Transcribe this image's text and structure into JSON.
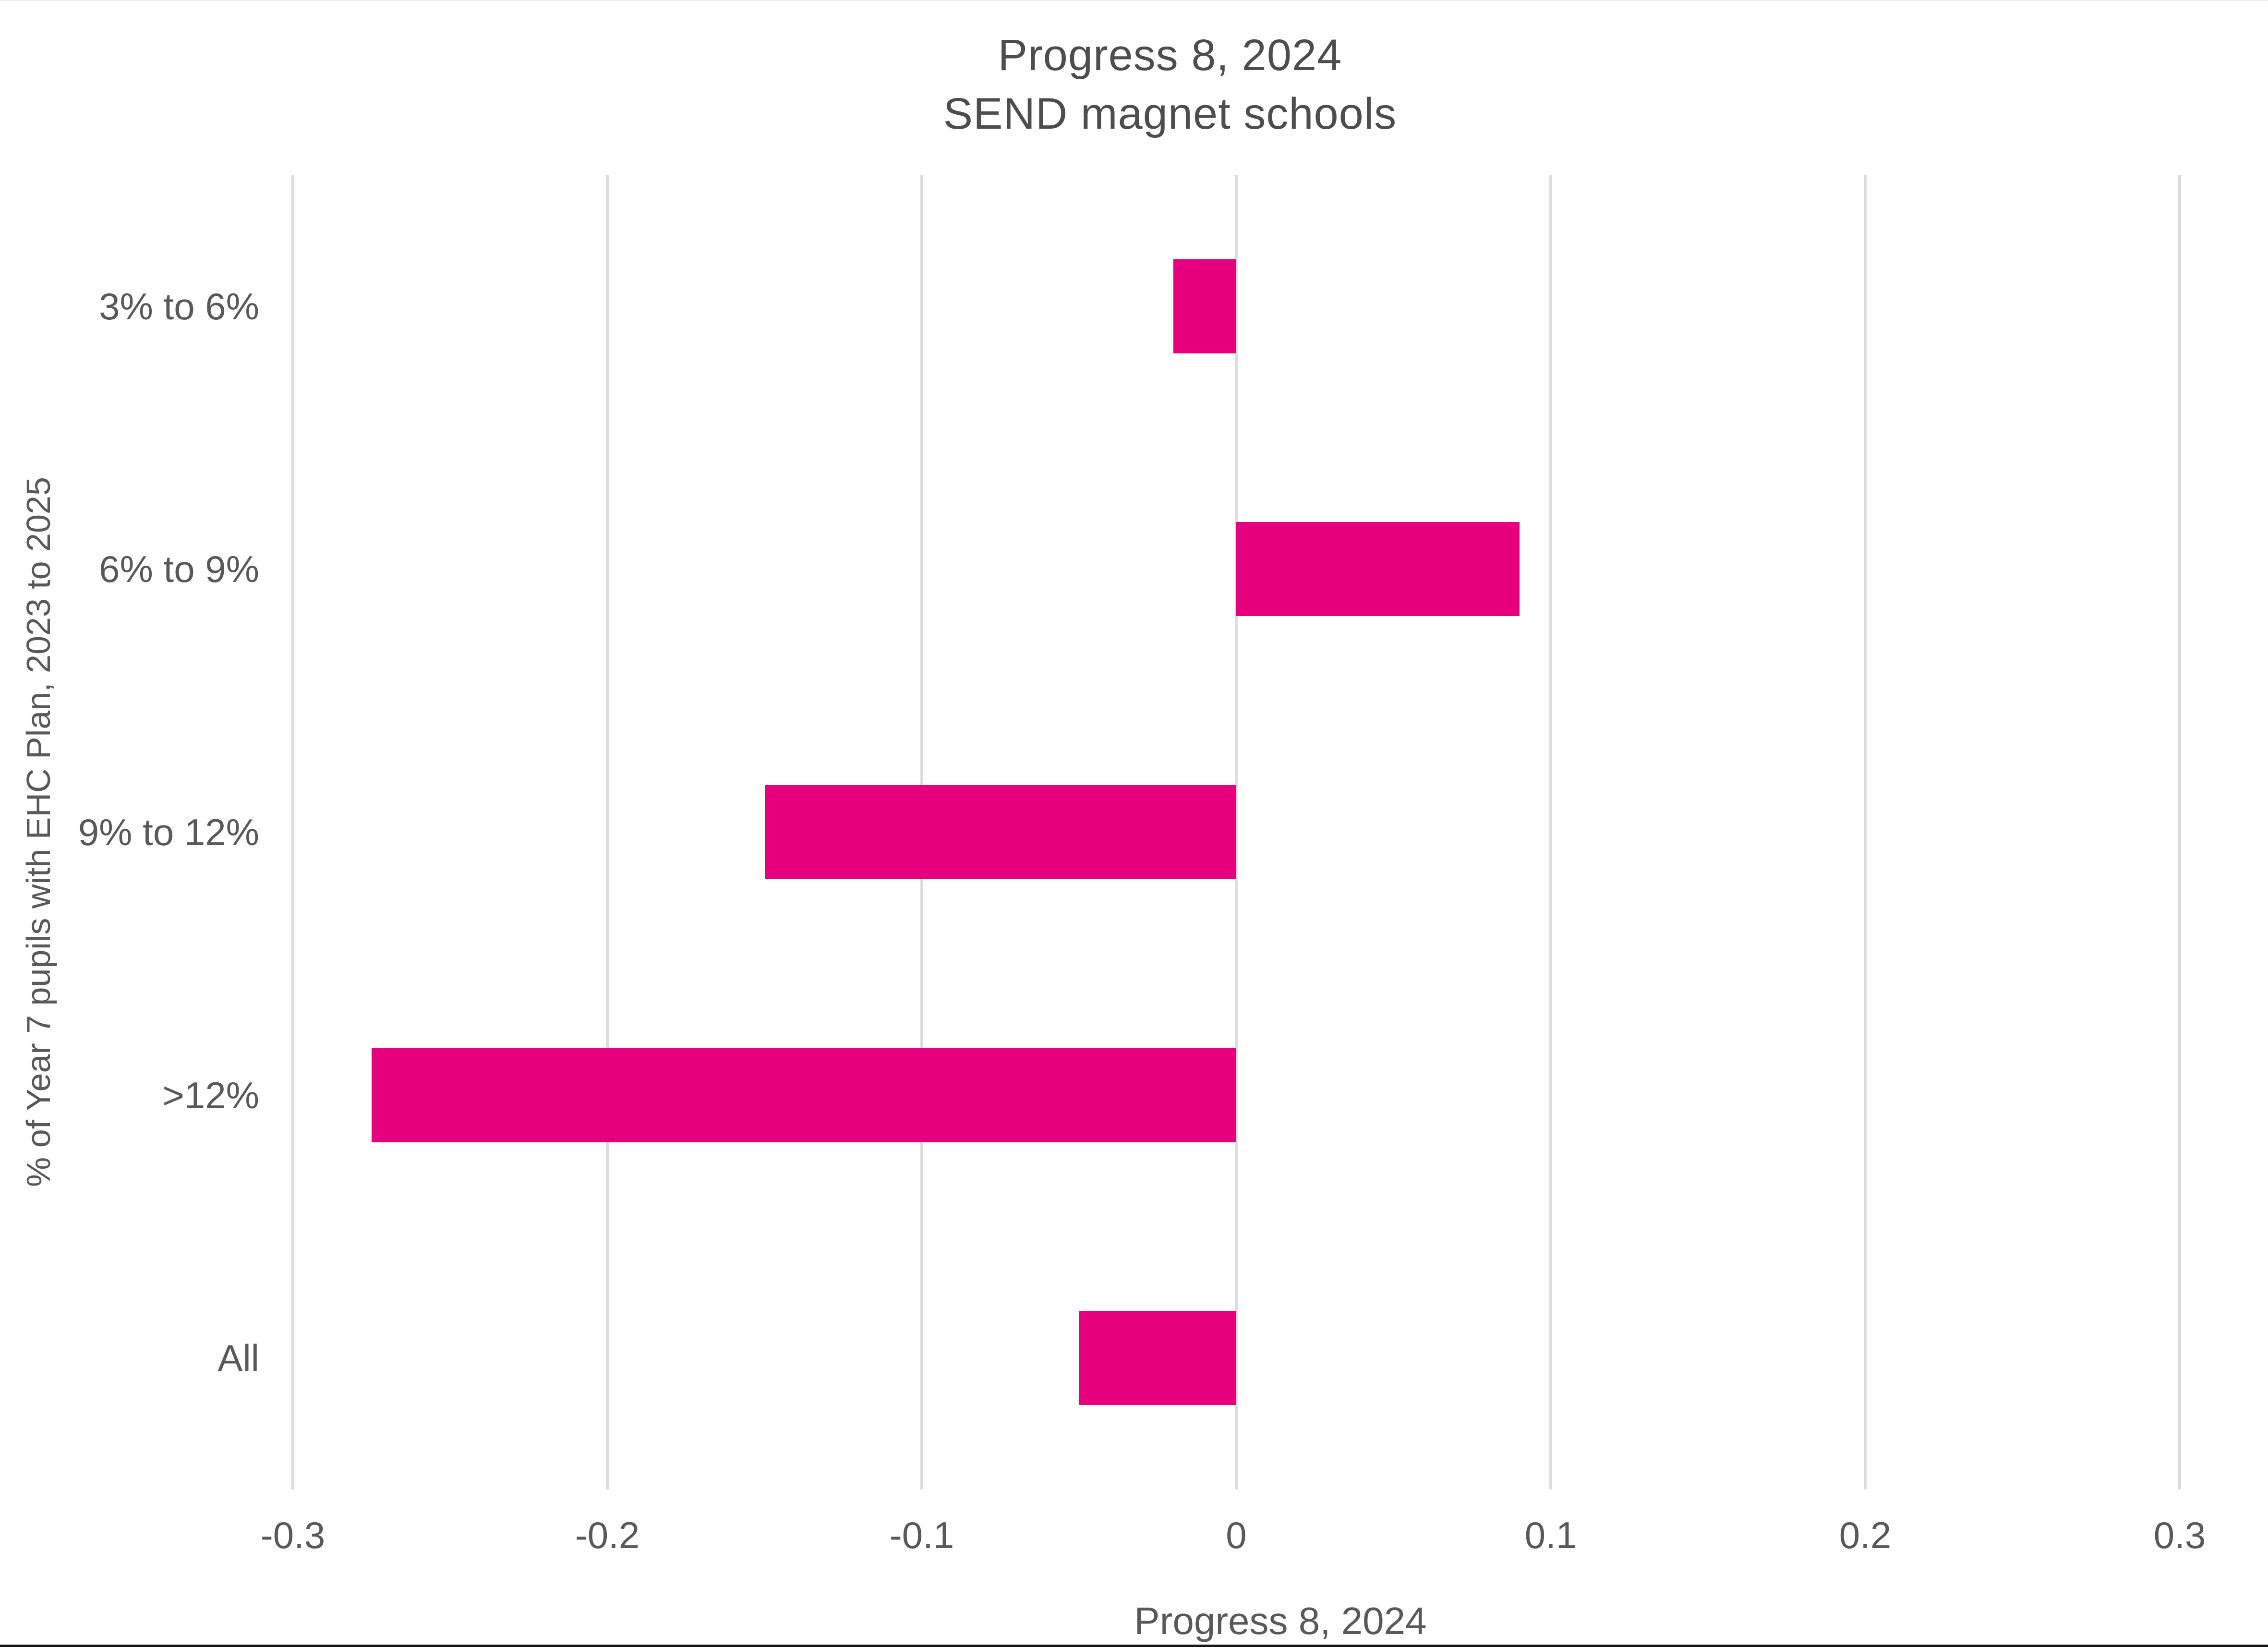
{
  "chart_data": {
    "type": "bar",
    "orientation": "horizontal",
    "title_line1": "Progress 8, 2024",
    "title_line2": "SEND magnet schools",
    "categories": [
      "3% to 6%",
      "6% to 9%",
      "9% to 12%",
      ">12%",
      "All"
    ],
    "values": [
      -0.02,
      0.09,
      -0.15,
      -0.275,
      -0.05
    ],
    "xlabel": "Progress 8, 2024",
    "ylabel": "% of Year 7 pupils with EHC Plan, 2023 to 2025",
    "xlim": [
      -0.3,
      0.3
    ],
    "xticks": [
      -0.3,
      -0.2,
      -0.1,
      0,
      0.1,
      0.2,
      0.3
    ],
    "xtick_labels": [
      "-0.3",
      "-0.2",
      "-0.1",
      "0",
      "0.1",
      "0.2",
      "0.3"
    ],
    "grid": "vertical",
    "legend_position": "none",
    "colors": {
      "bar": "#e6007e",
      "gridline": "#dcdcdc",
      "axis_text": "#595959",
      "title_text": "#4d4d4d",
      "bottom_edge": "#161616"
    }
  }
}
